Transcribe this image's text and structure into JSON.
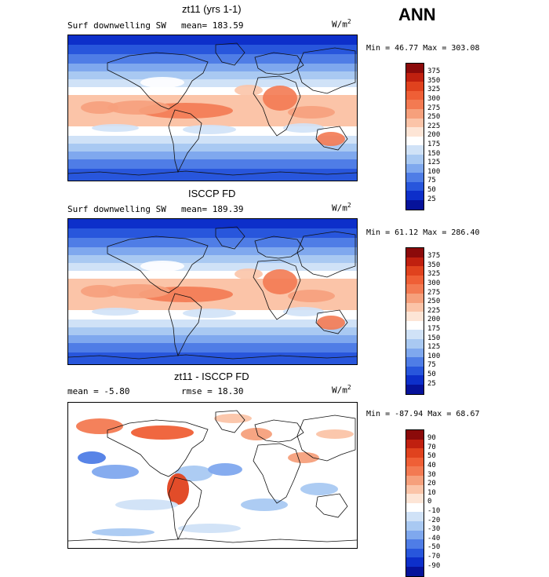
{
  "season": "ANN",
  "panels": [
    {
      "title": "zt11 (yrs 1-1)",
      "left_label": "Surf downwelling SW",
      "stat_label": "mean= 183.59",
      "units_base": "W/m",
      "units_exp": "2",
      "min_max": "Min =  46.77 Max = 303.08",
      "levels": [
        "375",
        "350",
        "325",
        "300",
        "275",
        "250",
        "225",
        "200",
        "175",
        "150",
        "125",
        "100",
        "75",
        "50",
        "25"
      ],
      "colors": [
        "#8b0a0a",
        "#c0200f",
        "#e0421e",
        "#ef5f36",
        "#f37a52",
        "#f6a07c",
        "#fbc4a8",
        "#fde5d6",
        "#ffffff",
        "#d0e2f7",
        "#a9c9f2",
        "#7fa8ee",
        "#4f7de6",
        "#2856dc",
        "#0d2fca",
        "#06129a"
      ]
    },
    {
      "title": "ISCCP FD",
      "left_label": "Surf downwelling SW",
      "stat_label": "mean= 189.39",
      "units_base": "W/m",
      "units_exp": "2",
      "min_max": "Min =  61.12 Max = 286.40",
      "levels": [
        "375",
        "350",
        "325",
        "300",
        "275",
        "250",
        "225",
        "200",
        "175",
        "150",
        "125",
        "100",
        "75",
        "50",
        "25"
      ],
      "colors": [
        "#8b0a0a",
        "#c0200f",
        "#e0421e",
        "#ef5f36",
        "#f37a52",
        "#f6a07c",
        "#fbc4a8",
        "#fde5d6",
        "#ffffff",
        "#d0e2f7",
        "#a9c9f2",
        "#7fa8ee",
        "#4f7de6",
        "#2856dc",
        "#0d2fca",
        "#06129a"
      ]
    },
    {
      "title": "zt11 - ISCCP FD",
      "left_label": "mean =  -5.80",
      "stat_label": "rmse =  18.30",
      "units_base": "W/m",
      "units_exp": "2",
      "min_max": "Min = -87.94 Max =  68.67",
      "levels": [
        "90",
        "70",
        "50",
        "40",
        "30",
        "20",
        "10",
        "0",
        "-10",
        "-20",
        "-30",
        "-40",
        "-50",
        "-70",
        "-90"
      ],
      "colors": [
        "#8b0a0a",
        "#c0200f",
        "#e0421e",
        "#ef5f36",
        "#f37a52",
        "#f6a07c",
        "#fbc4a8",
        "#fde5d6",
        "#ffffff",
        "#d0e2f7",
        "#a9c9f2",
        "#7fa8ee",
        "#4f7de6",
        "#2856dc",
        "#0d2fca",
        "#06129a"
      ]
    }
  ]
}
